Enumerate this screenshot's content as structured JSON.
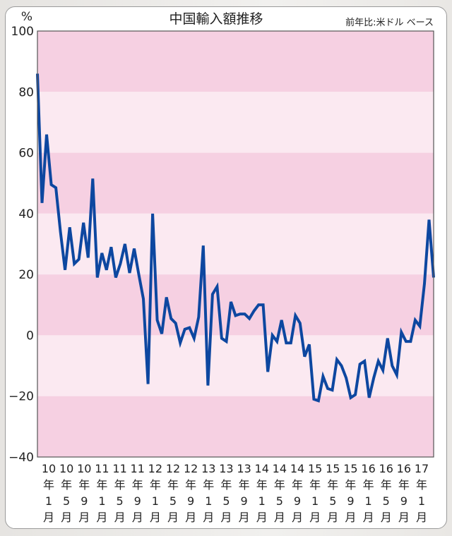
{
  "chart_data": {
    "type": "line",
    "title": "中国輸入額推移",
    "subtitle": "前年比:米ドル ベース",
    "ylabel": "%",
    "xlabel": "",
    "ylim": [
      -40,
      100
    ],
    "yticks": [
      100,
      80,
      60,
      40,
      20,
      0,
      -20,
      -40
    ],
    "ytick_labels": [
      "100",
      "80",
      "60",
      "40",
      "20",
      "0",
      "−20",
      "−40"
    ],
    "xtick_labels": [
      [
        "10",
        "年",
        "1",
        "月"
      ],
      [
        "10",
        "年",
        "5",
        "月"
      ],
      [
        "10",
        "年",
        "9",
        "月"
      ],
      [
        "11",
        "年",
        "1",
        "月"
      ],
      [
        "11",
        "年",
        "5",
        "月"
      ],
      [
        "11",
        "年",
        "9",
        "月"
      ],
      [
        "12",
        "年",
        "1",
        "月"
      ],
      [
        "12",
        "年",
        "5",
        "月"
      ],
      [
        "12",
        "年",
        "9",
        "月"
      ],
      [
        "13",
        "年",
        "1",
        "月"
      ],
      [
        "13",
        "年",
        "5",
        "月"
      ],
      [
        "13",
        "年",
        "9",
        "月"
      ],
      [
        "14",
        "年",
        "1",
        "月"
      ],
      [
        "14",
        "年",
        "5",
        "月"
      ],
      [
        "14",
        "年",
        "9",
        "月"
      ],
      [
        "15",
        "年",
        "1",
        "月"
      ],
      [
        "15",
        "年",
        "5",
        "月"
      ],
      [
        "15",
        "年",
        "9",
        "月"
      ],
      [
        "16",
        "年",
        "1",
        "月"
      ],
      [
        "16",
        "年",
        "5",
        "月"
      ],
      [
        "16",
        "年",
        "9",
        "月"
      ],
      [
        "17",
        "年",
        "1",
        "月"
      ]
    ],
    "x_start": "2010-01",
    "x_end": "2017-03",
    "grid": "alternating horizontal bands every 20",
    "series": [
      {
        "name": "輸入額 前年比",
        "color": "#0d47a0",
        "values": [
          86,
          43.5,
          66,
          49.5,
          48.5,
          34,
          21.5,
          35.5,
          23.5,
          25,
          37,
          25.5,
          51.5,
          19,
          27,
          21.5,
          29,
          19,
          23.5,
          30,
          20.5,
          28.5,
          20,
          12,
          -16,
          40,
          5,
          0.5,
          12.5,
          5.5,
          4,
          -2.5,
          2,
          2.5,
          -1,
          6,
          29.5,
          -16.5,
          13.5,
          16,
          -1,
          -2,
          11,
          6.5,
          7,
          7,
          5.5,
          8,
          10,
          10,
          -12,
          0,
          -2,
          5,
          -2.5,
          -2.5,
          6.5,
          4,
          -7,
          -3,
          -21,
          -21.5,
          -13.5,
          -17.5,
          -18,
          -8,
          -10,
          -14,
          -20.5,
          -19.5,
          -9.5,
          -8.5,
          -20.5,
          -14,
          -8.5,
          -11.5,
          -1,
          -10,
          -13,
          1,
          -2,
          -2,
          5,
          3,
          17,
          38,
          19
        ]
      }
    ],
    "colors": {
      "band_dark": "#f6d0e2",
      "band_light": "#fbe9f1",
      "line": "#0d47a0",
      "axis": "#555555"
    }
  }
}
